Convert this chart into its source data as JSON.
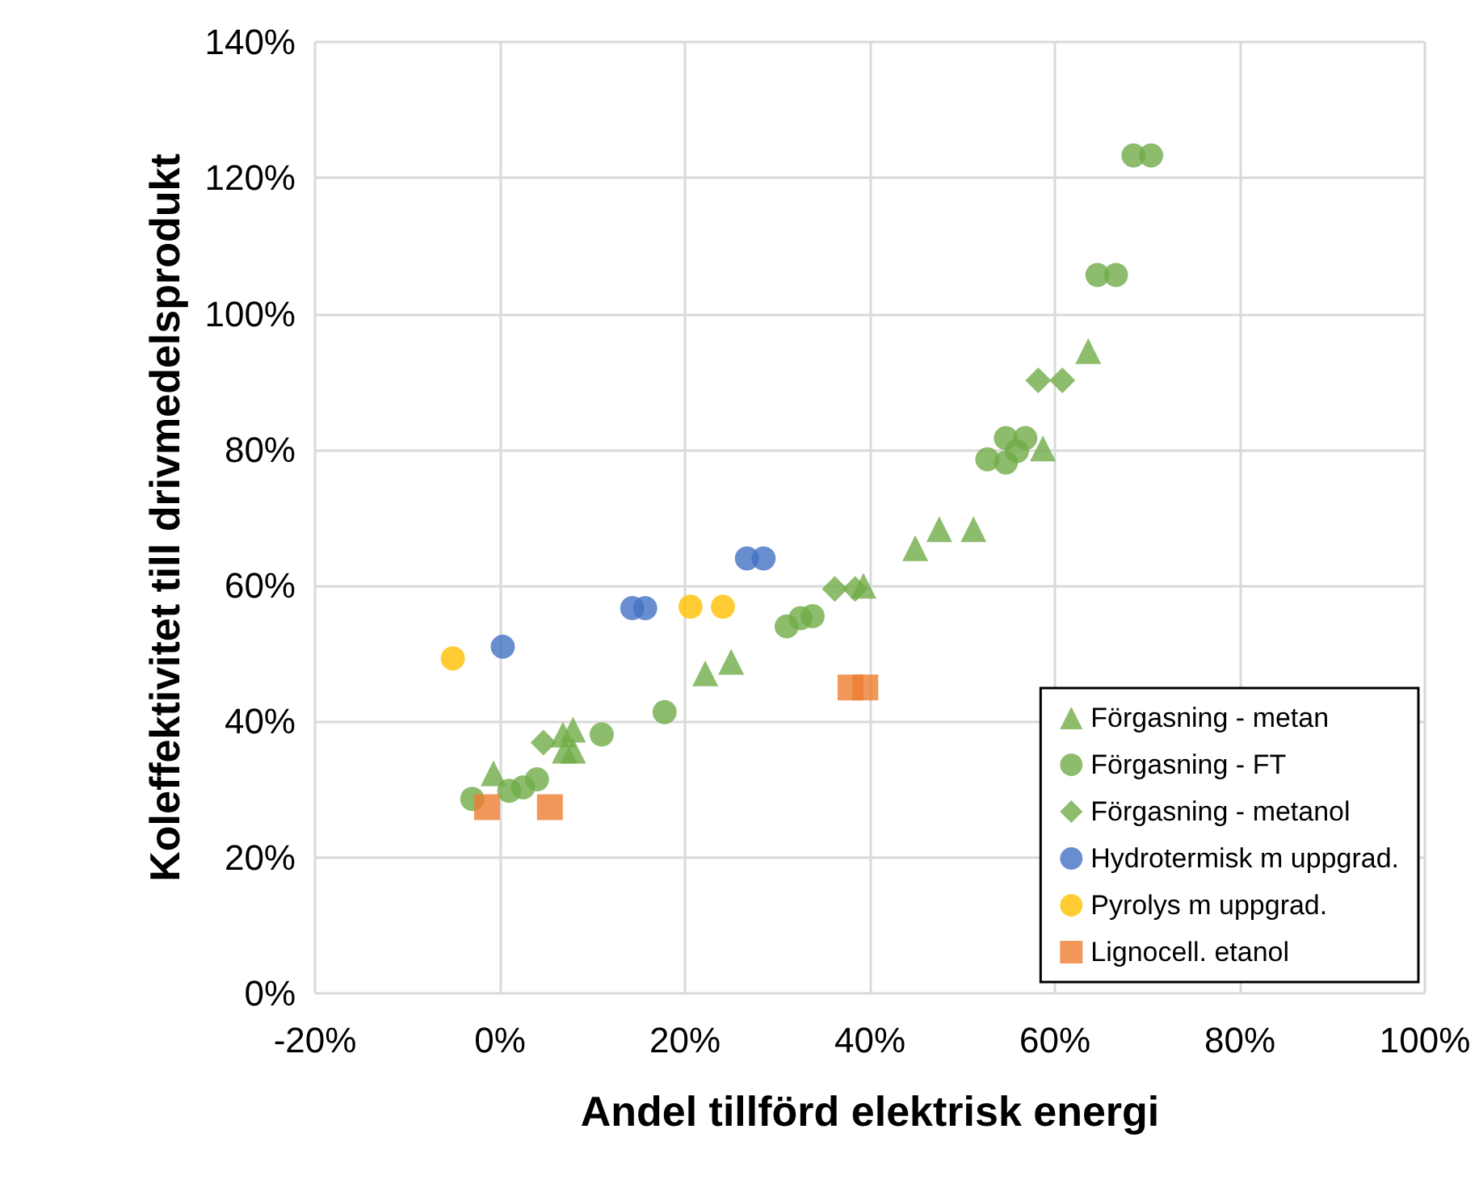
{
  "chart_data": {
    "type": "scatter",
    "xlabel": "Andel tillförd elektrisk energi",
    "ylabel": "Koleffektivitet till drivmedelsprodukt",
    "xlim": [
      -20,
      100
    ],
    "xticks": [
      {
        "value": -20,
        "label": "-20%"
      },
      {
        "value": 0,
        "label": "0%"
      },
      {
        "value": 20,
        "label": "20%"
      },
      {
        "value": 40,
        "label": "40%"
      },
      {
        "value": 60,
        "label": "60%"
      },
      {
        "value": 80,
        "label": "80%"
      },
      {
        "value": 100,
        "label": "100%"
      }
    ],
    "ylim": [
      0,
      140
    ],
    "yticks": [
      {
        "value": 0,
        "label": "0%"
      },
      {
        "value": 20,
        "label": "20%"
      },
      {
        "value": 40,
        "label": "40%"
      },
      {
        "value": 60,
        "label": "60%"
      },
      {
        "value": 80,
        "label": "80%"
      },
      {
        "value": 100,
        "label": "100%"
      },
      {
        "value": 120,
        "label": "120%"
      },
      {
        "value": 140,
        "label": "140%"
      }
    ],
    "grid": true,
    "legend": "bottom right",
    "series": [
      {
        "name": "Förgasning - metan",
        "color": "#70ad47",
        "marker": "triangle",
        "x": [
          -0.7,
          6.8,
          7.9,
          7.0,
          7.9,
          22.2,
          25.0,
          39.3,
          44.9,
          47.5,
          51.2,
          58.7,
          63.6
        ],
        "values": [
          32.4,
          38.1,
          38.8,
          35.7,
          35.7,
          47.1,
          48.8,
          60,
          65.5,
          68.3,
          68.3,
          80.2,
          94.5
        ]
      },
      {
        "name": "Förgasning - FT",
        "color": "#70ad47",
        "marker": "circle",
        "x": [
          -3,
          1,
          2.5,
          4,
          11,
          17.8,
          31,
          32.5,
          33.8,
          52.7,
          54.7,
          54.7,
          56.8,
          55.9,
          64.6,
          66.6,
          68.5,
          70.4
        ],
        "values": [
          28.6,
          29.8,
          30.3,
          31.5,
          38.1,
          41.4,
          54.0,
          55.2,
          55.5,
          78.6,
          78.1,
          81.7,
          81.7,
          79.8,
          105.7,
          105.7,
          123.3,
          123.3
        ]
      },
      {
        "name": "Förgasning - metanol",
        "color": "#70ad47",
        "marker": "diamond",
        "x": [
          4.7,
          36.2,
          38.4,
          58.2,
          60.8
        ],
        "values": [
          36.9,
          59.5,
          59.5,
          90.2,
          90.2
        ]
      },
      {
        "name": "Hydrotermisk m uppgrad.",
        "color": "#4472c4",
        "marker": "circle",
        "x": [
          0.3,
          14.3,
          15.7,
          26.7,
          28.5
        ],
        "values": [
          51,
          56.7,
          56.7,
          64,
          64
        ]
      },
      {
        "name": "Pyrolys m uppgrad.",
        "color": "#ffc000",
        "marker": "circle",
        "x": [
          -5.1,
          20.6,
          24.1
        ],
        "values": [
          49.3,
          56.9,
          56.9
        ]
      },
      {
        "name": "Lignocell. etanol",
        "color": "#ed7d31",
        "marker": "square",
        "x": [
          -1.4,
          5.4,
          37.9,
          39.5
        ],
        "values": [
          27.4,
          27.4,
          45,
          45
        ]
      }
    ]
  }
}
